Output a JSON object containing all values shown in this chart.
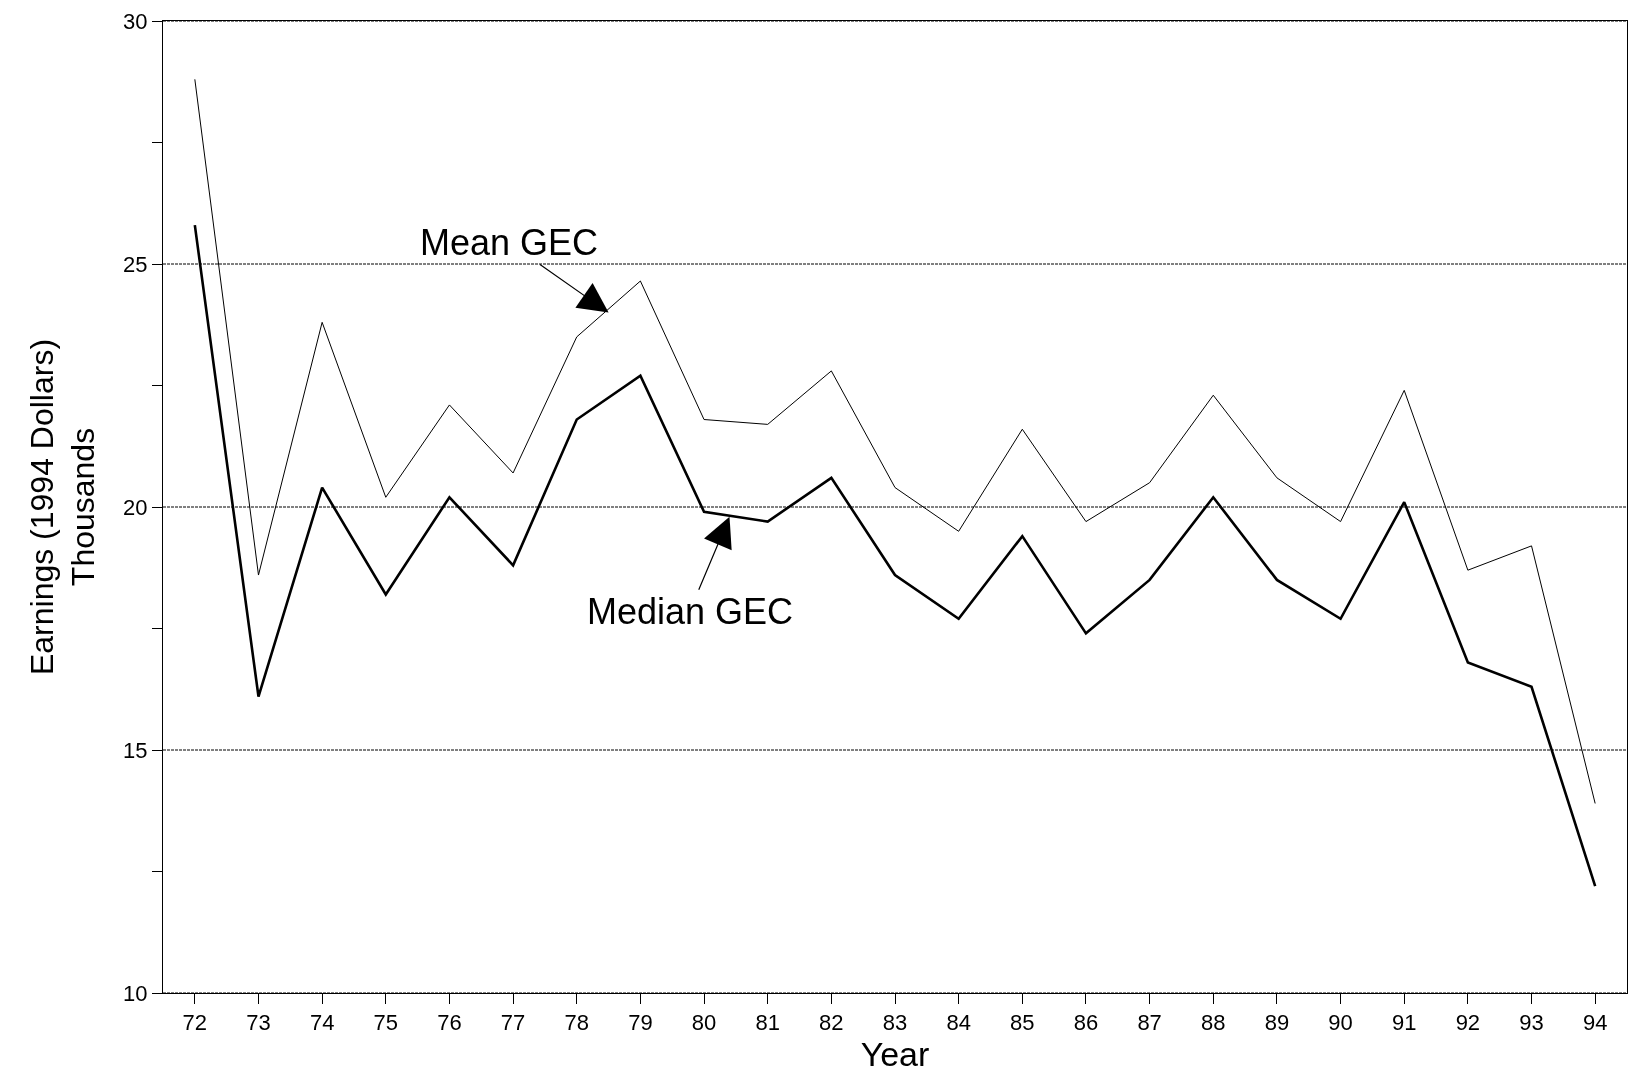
{
  "chart_data": {
    "type": "line",
    "xlabel": "Year",
    "ylabel": "Earnings (1994 Dollars)\nThousands",
    "x": [
      72,
      73,
      74,
      75,
      76,
      77,
      78,
      79,
      80,
      81,
      82,
      83,
      84,
      85,
      86,
      87,
      88,
      89,
      90,
      91,
      92,
      93,
      94
    ],
    "xlim": [
      71.5,
      94.5
    ],
    "xticks": [
      72,
      73,
      74,
      75,
      76,
      77,
      78,
      79,
      80,
      81,
      82,
      83,
      84,
      85,
      86,
      87,
      88,
      89,
      90,
      91,
      92,
      93,
      94
    ],
    "ylim": [
      10,
      30
    ],
    "yticks": [
      10,
      {
        "value": 12.5,
        "label": null
      },
      15,
      {
        "value": 17.5,
        "label": null
      },
      20,
      {
        "value": 22.5,
        "label": null
      },
      25,
      {
        "value": 27.5,
        "label": null
      },
      30
    ],
    "grid": "y",
    "marker": "none",
    "line_style": "solid",
    "series": [
      {
        "color": "#000000",
        "values": [
          28.8,
          18.6,
          23.8,
          20.2,
          22.1,
          20.7,
          23.5,
          24.65,
          21.8,
          21.7,
          22.8,
          20.4,
          19.5,
          21.6,
          19.7,
          20.5,
          22.3,
          20.6,
          19.7,
          22.4,
          18.7,
          19.2,
          13.9
        ]
      },
      {
        "color": "#000000",
        "values": [
          25.8,
          16.1,
          20.4,
          18.2,
          20.2,
          18.8,
          21.8,
          22.7,
          19.9,
          19.7,
          20.6,
          18.6,
          17.7,
          19.4,
          17.4,
          18.5,
          20.2,
          18.5,
          17.7,
          20.1,
          16.8,
          16.3,
          12.2
        ]
      }
    ],
    "annotations": [
      {
        "text": "Mean GEC",
        "x": 78.5,
        "y": 24.0
      },
      {
        "text": "Median GEC",
        "x": 80.4,
        "y": 19.8
      }
    ]
  }
}
